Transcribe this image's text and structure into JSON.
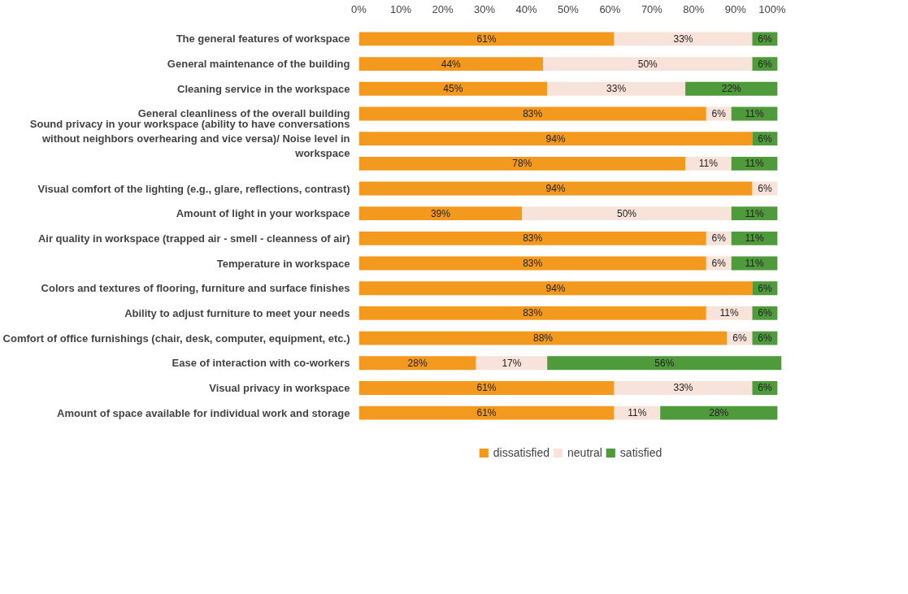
{
  "chart_data": {
    "type": "bar",
    "orientation": "horizontal",
    "stacked": true,
    "categories": [
      "The general features of workspace",
      "General maintenance of the building",
      "Cleaning service in the workspace",
      "General cleanliness of the overall building",
      "Sound privacy in your workspace (ability to have conversations\nwithout neighbors overhearing and vice versa)/ Noise level in\nworkspace",
      null,
      "Visual comfort of the lighting (e.g., glare, reflections, contrast)",
      "Amount of light in your workspace",
      "Air quality in workspace (trapped air - smell - cleanness of air)",
      "Temperature in workspace",
      "Colors and textures of flooring, furniture and surface finishes",
      "Ability to adjust furniture to meet your needs",
      "Comfort of office furnishings (chair, desk, computer, equipment, etc.)",
      "Ease of interaction with co-workers",
      "Visual privacy in workspace",
      "Amount of space available for individual work and storage"
    ],
    "series": [
      {
        "name": "dissatisfied",
        "color": "#f39a1e",
        "values": [
          61,
          44,
          45,
          83,
          94,
          78,
          94,
          39,
          83,
          83,
          94,
          83,
          88,
          28,
          61,
          61
        ],
        "value_labels": [
          "61%",
          "44%",
          "45%",
          "83%",
          "94%",
          "78%",
          "94%",
          "39%",
          "83%",
          "83%",
          "94%",
          "83%",
          "88%",
          "28%",
          "61%",
          "61%"
        ]
      },
      {
        "name": "neutral",
        "color": "#f8e3da",
        "values": [
          33,
          50,
          33,
          6,
          0,
          11,
          6,
          50,
          6,
          6,
          0,
          11,
          6,
          17,
          33,
          11
        ],
        "value_labels": [
          "33%",
          "50%",
          "33%",
          "6%",
          null,
          "11%",
          "6%",
          "50%",
          "6%",
          "6%",
          null,
          "11%",
          "6%",
          "17%",
          "33%",
          "11%"
        ]
      },
      {
        "name": "satisfied",
        "color": "#4f9a3a",
        "values": [
          6,
          6,
          22,
          11,
          6,
          11,
          0,
          11,
          11,
          11,
          6,
          6,
          6,
          56,
          6,
          28
        ],
        "value_labels": [
          "6%",
          "6%",
          "22%",
          "11%",
          "6%",
          "11%",
          null,
          "11%",
          "11%",
          "11%",
          "6%",
          "6%",
          "6%",
          "56%",
          "6%",
          "28%"
        ]
      }
    ],
    "xlim": [
      0,
      101
    ],
    "xticks": [
      {
        "value": 0,
        "label": "0%"
      },
      {
        "value": 10,
        "label": "10%"
      },
      {
        "value": 20,
        "label": "20%"
      },
      {
        "value": 30,
        "label": "30%"
      },
      {
        "value": 40,
        "label": "40%"
      },
      {
        "value": 50,
        "label": "50%"
      },
      {
        "value": 60,
        "label": "60%"
      },
      {
        "value": 70,
        "label": "70%"
      },
      {
        "value": 80,
        "label": "80%"
      },
      {
        "value": 90,
        "label": "90%"
      },
      {
        "value": 100,
        "label": "100%"
      }
    ],
    "grid": false,
    "legend": "bottom"
  }
}
